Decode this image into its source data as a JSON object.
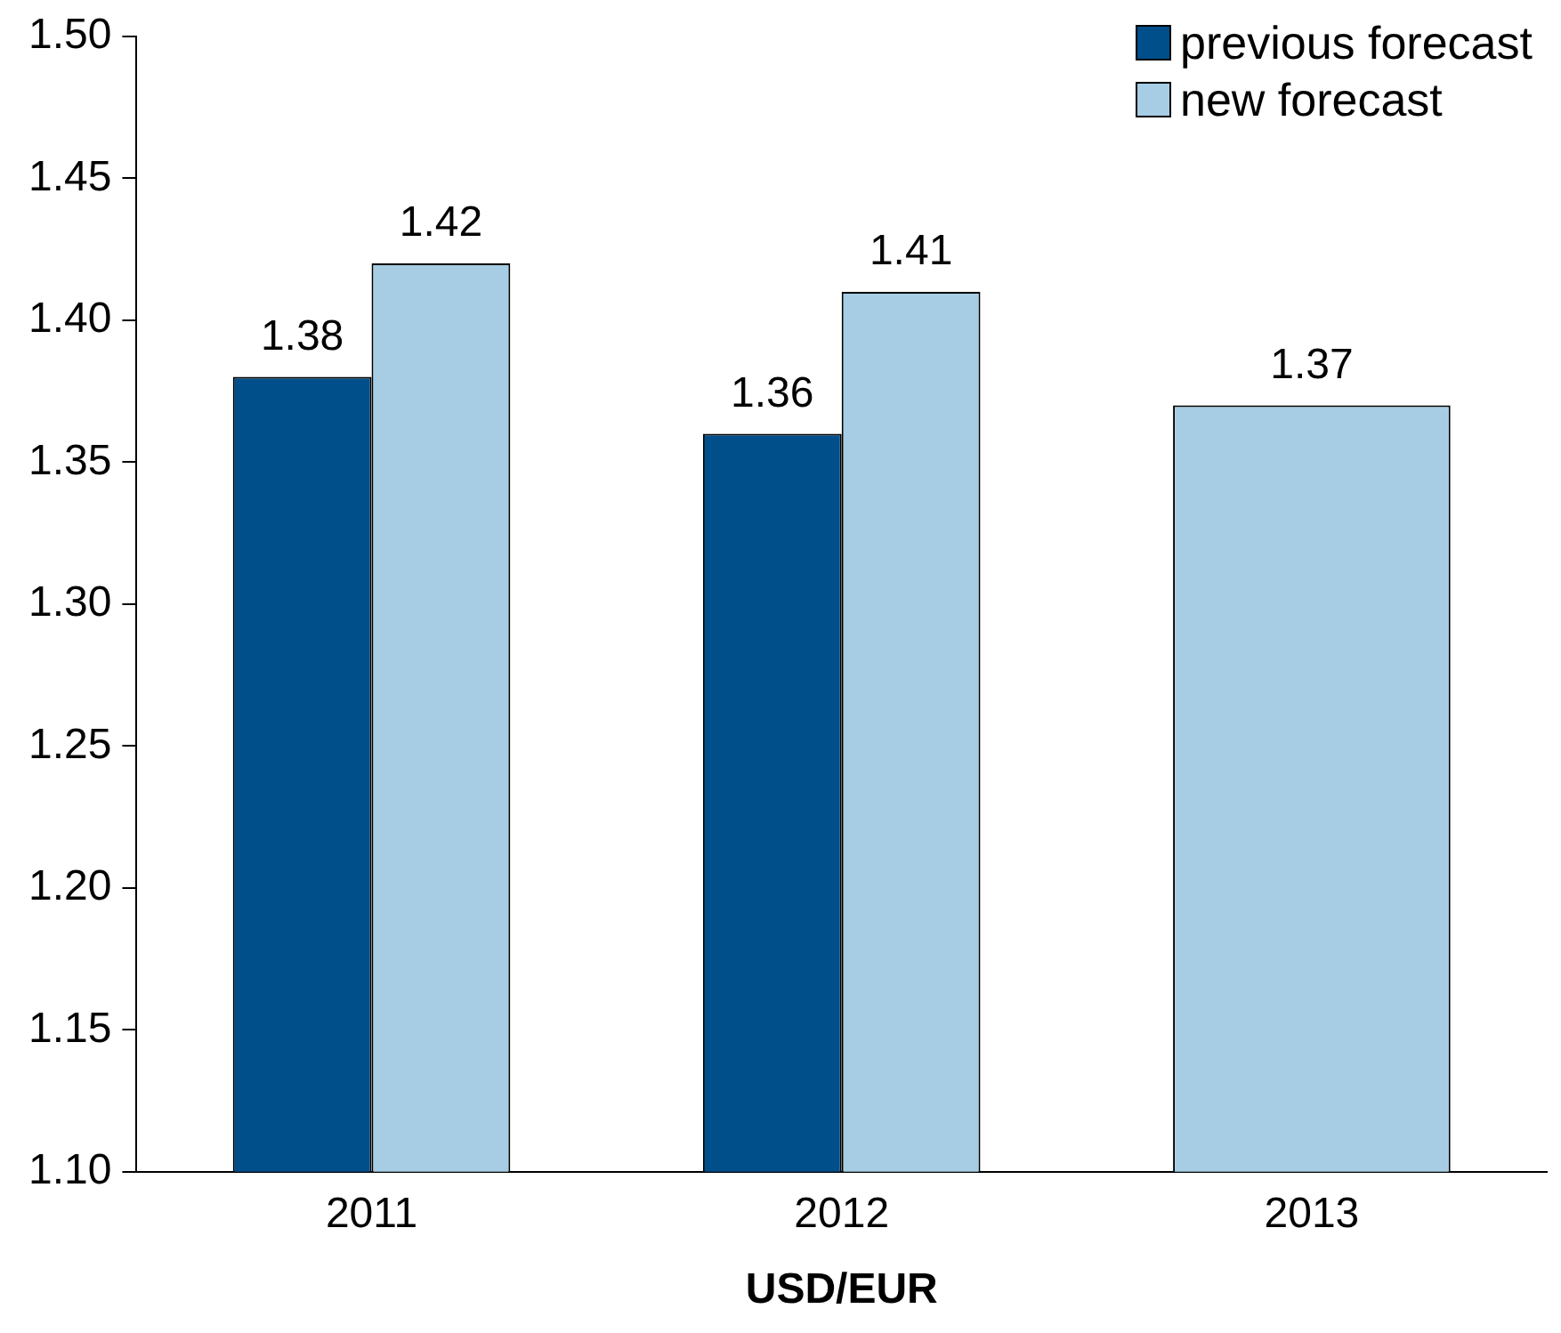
{
  "chart_data": {
    "type": "bar",
    "xlabel": "USD/EUR",
    "categories": [
      "2011",
      "2012",
      "2013"
    ],
    "series": [
      {
        "name": "previous forecast",
        "color": "#004f8b",
        "values": [
          1.38,
          1.36,
          null
        ]
      },
      {
        "name": "new forecast",
        "color": "#a6cde4",
        "values": [
          1.42,
          1.41,
          1.37
        ]
      }
    ],
    "ylim": [
      1.1,
      1.5
    ],
    "yticks": [
      {
        "value": 1.1,
        "label": "1.10"
      },
      {
        "value": 1.15,
        "label": "1.15"
      },
      {
        "value": 1.2,
        "label": "1.20"
      },
      {
        "value": 1.25,
        "label": "1.25"
      },
      {
        "value": 1.3,
        "label": "1.30"
      },
      {
        "value": 1.35,
        "label": "1.35"
      },
      {
        "value": 1.4,
        "label": "1.40"
      },
      {
        "value": 1.45,
        "label": "1.45"
      },
      {
        "value": 1.5,
        "label": "1.50"
      }
    ],
    "data_labels": true,
    "grid": false,
    "legend": "top right"
  }
}
